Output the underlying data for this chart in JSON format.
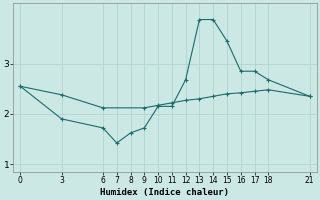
{
  "xlabel": "Humidex (Indice chaleur)",
  "background_color": "#cce8e4",
  "line_color": "#1a6b6b",
  "grid_color": "#b0d4cf",
  "line1_x": [
    0,
    3,
    6,
    7,
    8,
    9,
    10,
    11,
    12,
    13,
    14,
    15,
    16,
    17,
    18,
    21
  ],
  "line1_y": [
    2.55,
    1.9,
    1.72,
    1.42,
    1.62,
    1.72,
    2.15,
    2.15,
    2.68,
    3.88,
    3.88,
    3.45,
    2.85,
    2.85,
    2.68,
    2.35
  ],
  "line2_x": [
    0,
    3,
    6,
    9,
    10,
    11,
    12,
    13,
    14,
    15,
    16,
    17,
    18,
    21
  ],
  "line2_y": [
    2.55,
    2.38,
    2.12,
    2.12,
    2.17,
    2.22,
    2.27,
    2.3,
    2.35,
    2.4,
    2.42,
    2.45,
    2.48,
    2.35
  ],
  "xlim": [
    -0.5,
    21.5
  ],
  "ylim": [
    0.85,
    4.2
  ],
  "yticks": [
    1,
    2,
    3
  ],
  "xticks": [
    0,
    3,
    6,
    7,
    8,
    9,
    10,
    11,
    12,
    13,
    14,
    15,
    16,
    17,
    18,
    21
  ]
}
